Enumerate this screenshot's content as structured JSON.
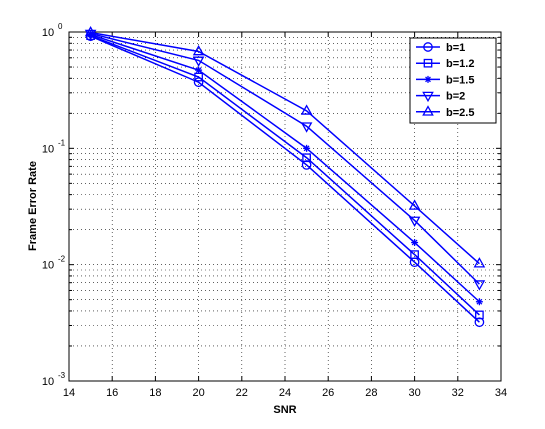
{
  "chart_data": {
    "type": "line",
    "title": "",
    "xlabel": "SNR",
    "ylabel": "Frame Error Rate",
    "xlim": [
      14,
      34
    ],
    "ylim": [
      0.001,
      1
    ],
    "yscale": "log",
    "grid": true,
    "legend_position": "top-right",
    "line_color": "#0000ff",
    "x_ticks": [
      "14",
      "16",
      "18",
      "20",
      "22",
      "24",
      "26",
      "28",
      "30",
      "32",
      "34"
    ],
    "y_ticks": [
      {
        "base": "10",
        "exp": "-3",
        "value": 0.001
      },
      {
        "base": "10",
        "exp": "-2",
        "value": 0.01
      },
      {
        "base": "10",
        "exp": "-1",
        "value": 0.1
      },
      {
        "base": "10",
        "exp": "0",
        "value": 1
      }
    ],
    "x": [
      15,
      20,
      25,
      30,
      33
    ],
    "series": [
      {
        "name": "b=1",
        "marker": "circle",
        "values": [
          0.92,
          0.37,
          0.072,
          0.0105,
          0.0032
        ]
      },
      {
        "name": "b=1.2",
        "marker": "square",
        "values": [
          0.93,
          0.41,
          0.083,
          0.0122,
          0.0037
        ]
      },
      {
        "name": "b=1.5",
        "marker": "star",
        "values": [
          0.95,
          0.47,
          0.1,
          0.0155,
          0.0048
        ]
      },
      {
        "name": "b=2",
        "marker": "triangle-down",
        "values": [
          0.97,
          0.57,
          0.155,
          0.024,
          0.0068
        ]
      },
      {
        "name": "b=2.5",
        "marker": "triangle-up",
        "values": [
          0.99,
          0.68,
          0.21,
          0.032,
          0.0102
        ]
      }
    ]
  }
}
